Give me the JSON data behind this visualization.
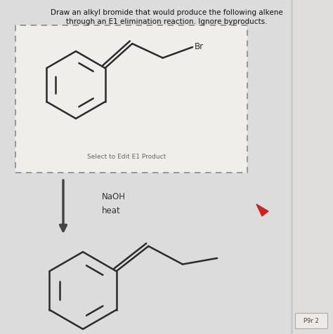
{
  "title_line1": "Draw an alkyl bromide that would produce the following alkene",
  "title_line2": "through an E1 elimination reaction. Ignore byproducts.",
  "select_text": "Select to Edit E1 Product",
  "naoh_text": "NaOH",
  "heat_text": "heat",
  "br_text": "Br",
  "pgr_text": "P9r 2",
  "bg_color": "#dcdcdc",
  "box_bg": "#f0eeeb",
  "line_color": "#2a2a2a",
  "text_color": "#111111",
  "gray_text": "#666666",
  "arrow_color": "#444444",
  "border_color": "#888888",
  "cursor_color": "#cc2222",
  "right_bar_color": "#cccccc"
}
